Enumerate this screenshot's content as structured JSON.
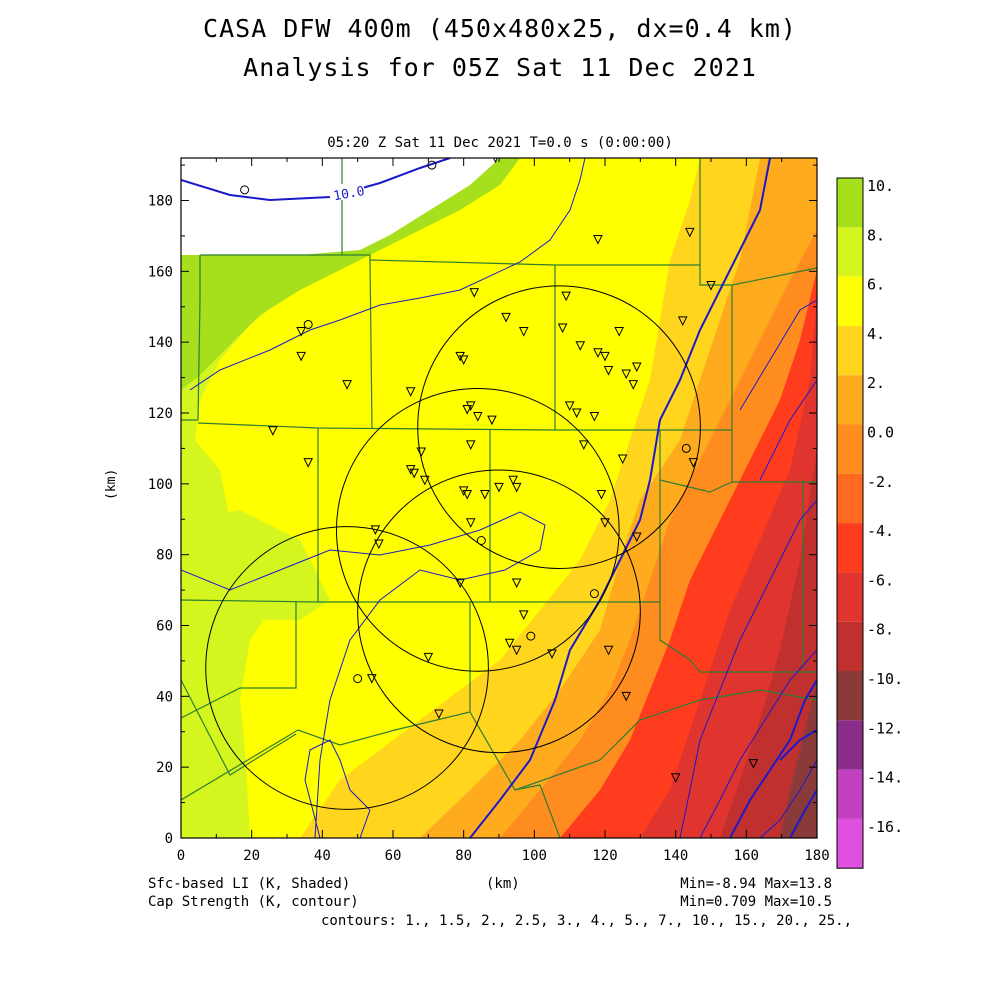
{
  "title": {
    "line1": "CASA DFW 400m (450x480x25, dx=0.4 km)",
    "line2": "Analysis for 05Z Sat 11 Dec 2021"
  },
  "subtitle": "05:20 Z Sat 11 Dec 2021   T=0.0 s (0:00:00)",
  "axes": {
    "x_unit": "(km)",
    "y_unit": "(km)",
    "x_ticks": [
      "0",
      "20",
      "40",
      "60",
      "80",
      "100",
      "120",
      "140",
      "160",
      "180"
    ],
    "y_ticks": [
      "0",
      "20",
      "40",
      "60",
      "80",
      "100",
      "120",
      "140",
      "160",
      "180"
    ],
    "x_range": [
      0,
      180
    ],
    "y_range": [
      0,
      192
    ]
  },
  "colorbar": {
    "labels": [
      "10.",
      "8.",
      "6.",
      "4.",
      "2.",
      "0.0",
      "-2.",
      "-4.",
      "-6.",
      "-8.",
      "-10.",
      "-12.",
      "-14.",
      "-16."
    ],
    "colors": [
      "#a6e01c",
      "#d4f51e",
      "#ffff00",
      "#ffd51e",
      "#ffab1e",
      "#ff8c1e",
      "#ff6a1e",
      "#ff3c1e",
      "#e0342e",
      "#c0302e",
      "#8b3a3a",
      "#8a2e8a",
      "#c040c0",
      "#e050e0"
    ]
  },
  "contour_labels": [
    "10.0"
  ],
  "footer": {
    "field1": "Sfc-based LI (K, Shaded)",
    "field2": "Cap Strength (K, contour)",
    "stats1": "Min=-8.94 Max=13.8",
    "stats2": "Min=0.709 Max=10.5",
    "contours": "contours: 1., 1.5, 2., 2.5, 3., 4., 5., 7., 10., 15., 20., 25.,"
  },
  "map_style": {
    "county_color": "#2e7d32",
    "contour_color": "#1a1acc",
    "radar_color": "#000000"
  },
  "map_data": {
    "stations_triangle": [
      [
        118,
        169
      ],
      [
        144,
        171
      ],
      [
        150,
        156
      ],
      [
        83,
        154
      ],
      [
        109,
        153
      ],
      [
        34,
        143
      ],
      [
        92,
        147
      ],
      [
        97,
        143
      ],
      [
        108,
        144
      ],
      [
        124,
        143
      ],
      [
        142,
        146
      ],
      [
        34,
        136
      ],
      [
        79,
        136
      ],
      [
        80,
        135
      ],
      [
        113,
        139
      ],
      [
        118,
        137
      ],
      [
        120,
        136
      ],
      [
        121,
        132
      ],
      [
        126,
        131
      ],
      [
        128,
        128
      ],
      [
        129,
        133
      ],
      [
        47,
        128
      ],
      [
        65,
        126
      ],
      [
        81,
        121
      ],
      [
        82,
        122
      ],
      [
        84,
        119
      ],
      [
        88,
        118
      ],
      [
        110,
        122
      ],
      [
        112,
        120
      ],
      [
        117,
        119
      ],
      [
        26,
        115
      ],
      [
        82,
        111
      ],
      [
        114,
        111
      ],
      [
        125,
        107
      ],
      [
        145,
        106
      ],
      [
        36,
        106
      ],
      [
        65,
        104
      ],
      [
        66,
        103
      ],
      [
        68,
        109
      ],
      [
        69,
        101
      ],
      [
        80,
        98
      ],
      [
        81,
        97
      ],
      [
        86,
        97
      ],
      [
        90,
        99
      ],
      [
        94,
        101
      ],
      [
        95,
        99
      ],
      [
        119,
        97
      ],
      [
        82,
        89
      ],
      [
        120,
        89
      ],
      [
        55,
        87
      ],
      [
        56,
        83
      ],
      [
        129,
        85
      ],
      [
        79,
        72
      ],
      [
        95,
        72
      ],
      [
        97,
        63
      ],
      [
        93,
        55
      ],
      [
        95,
        53
      ],
      [
        105,
        52
      ],
      [
        121,
        53
      ],
      [
        70,
        51
      ],
      [
        54,
        45
      ],
      [
        126,
        40
      ],
      [
        73,
        35
      ],
      [
        140,
        17
      ],
      [
        162,
        21
      ],
      [
        89,
        192
      ]
    ],
    "stations_circle": [
      [
        18,
        183
      ],
      [
        71,
        190
      ],
      [
        36,
        145
      ],
      [
        143,
        110
      ],
      [
        85,
        84
      ],
      [
        117,
        69
      ],
      [
        99,
        57
      ],
      [
        50,
        45
      ]
    ],
    "radar_circles": [
      [
        107,
        116,
        40
      ],
      [
        84,
        87,
        40
      ],
      [
        90,
        64,
        40
      ],
      [
        47,
        48,
        40
      ]
    ]
  }
}
